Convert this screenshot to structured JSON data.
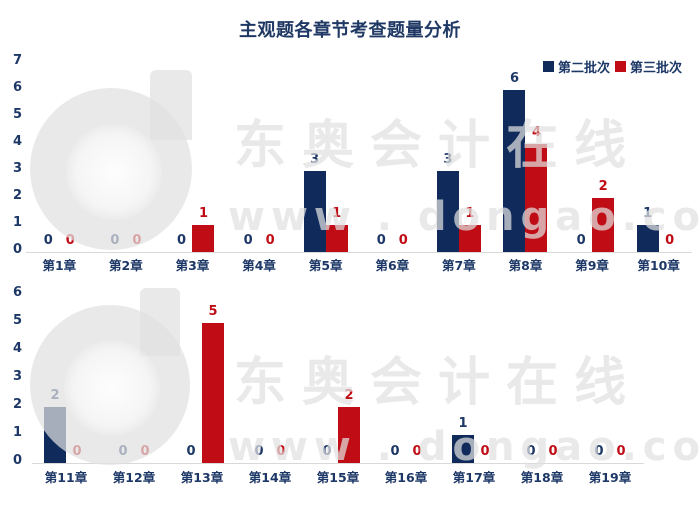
{
  "title": "主观题各章节考查题量分析",
  "colors": {
    "series1": "#112a5c",
    "series2": "#c00d15",
    "axis_text": "#1d3867",
    "title_text": "#1f3864",
    "baseline": "#d9d9d9"
  },
  "legend": [
    {
      "label": "第二批次",
      "color": "#112a5c"
    },
    {
      "label": "第三批次",
      "color": "#c00d15"
    }
  ],
  "watermark": {
    "brand": "东奥会计在线",
    "url": "www . dongao.com"
  },
  "chart_data": [
    {
      "type": "bar",
      "title": "主观题各章节考查题量分析",
      "categories": [
        "第1章",
        "第2章",
        "第3章",
        "第4章",
        "第5章",
        "第6章",
        "第7章",
        "第8章",
        "第9章",
        "第10章"
      ],
      "series": [
        {
          "name": "第二批次",
          "color": "#112a5c",
          "values": [
            0,
            0,
            0,
            0,
            3,
            0,
            3,
            6,
            0,
            1
          ]
        },
        {
          "name": "第三批次",
          "color": "#c00d15",
          "values": [
            0,
            0,
            1,
            0,
            1,
            0,
            1,
            4,
            2,
            0
          ]
        }
      ],
      "ylim": [
        0,
        7
      ],
      "yticks": [
        0,
        1,
        2,
        3,
        4,
        5,
        6,
        7
      ],
      "grid": false,
      "legend_position": "top-right",
      "value_labels": true
    },
    {
      "type": "bar",
      "title": "",
      "categories": [
        "第11章",
        "第12章",
        "第13章",
        "第14章",
        "第15章",
        "第16章",
        "第17章",
        "第18章",
        "第19章"
      ],
      "series": [
        {
          "name": "第二批次",
          "color": "#112a5c",
          "values": [
            2,
            0,
            0,
            0,
            0,
            0,
            1,
            0,
            0
          ]
        },
        {
          "name": "第三批次",
          "color": "#c00d15",
          "values": [
            0,
            0,
            5,
            0,
            2,
            0,
            0,
            0,
            0
          ]
        }
      ],
      "ylim": [
        0,
        6
      ],
      "yticks": [
        0,
        1,
        2,
        3,
        4,
        5,
        6
      ],
      "grid": false,
      "legend_position": "none",
      "value_labels": true
    }
  ]
}
